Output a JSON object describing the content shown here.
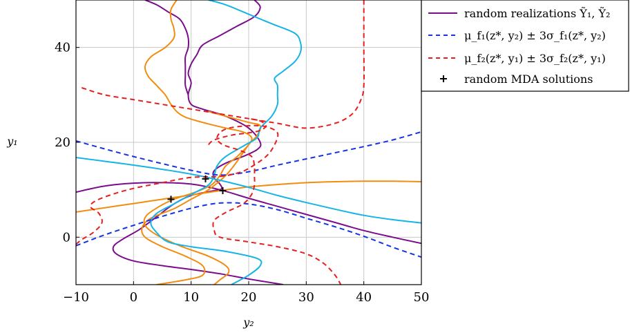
{
  "chart_data": {
    "type": "line",
    "xlabel": "y₂",
    "ylabel": "y₁",
    "xlim": [
      -10,
      50
    ],
    "ylim": [
      -10,
      50
    ],
    "xticks": [
      "−10",
      "0",
      "10",
      "20",
      "30",
      "40",
      "50"
    ],
    "yticks": [
      "0",
      "20",
      "40"
    ],
    "ytick_values": [
      0,
      20,
      40
    ],
    "xtick_values": [
      -10,
      0,
      10,
      20,
      30,
      40,
      50
    ],
    "grid": true,
    "legend_placement": "top-right",
    "colors": {
      "purple": "#7b0c8c",
      "orange": "#f28c0f",
      "cyan": "#14b4e6",
      "blue": "#1432e6",
      "red": "#e61e1e"
    },
    "legend": [
      {
        "label": "random realizations Ỹ₁, Ỹ₂",
        "style": "solid",
        "color": "#7b0c8c"
      },
      {
        "label": "μ_f₁(z*, y₂) ± 3σ_f₁(z*, y₂)",
        "style": "dashed",
        "color": "#1432e6"
      },
      {
        "label": "μ_f₂(z*, y₁) ± 3σ_f₂(z*, y₁)",
        "style": "dashed",
        "color": "#e61e1e"
      },
      {
        "label": "random MDA solutions",
        "style": "plus",
        "color": "#000000"
      }
    ],
    "series": [
      {
        "color": "purple",
        "style": "solid",
        "points": [
          [
            -10,
            9.5
          ],
          [
            -5,
            10.8
          ],
          [
            0,
            11.4
          ],
          [
            5,
            11.5
          ],
          [
            10,
            11.2
          ],
          [
            15,
            10
          ],
          [
            20,
            8.2
          ],
          [
            25,
            6.5
          ],
          [
            30,
            4.8
          ],
          [
            35,
            3.1
          ],
          [
            40,
            1.4
          ],
          [
            45,
            0
          ],
          [
            50,
            -1.3
          ]
        ]
      },
      {
        "color": "purple",
        "style": "solid",
        "points": [
          [
            26,
            -10
          ],
          [
            20,
            -8.8
          ],
          [
            15,
            -7.7
          ],
          [
            10,
            -6.8
          ],
          [
            5,
            -6
          ],
          [
            0,
            -5
          ],
          [
            -3,
            -3.5
          ],
          [
            -3.5,
            -2
          ],
          [
            -2,
            -0.5
          ],
          [
            1,
            1.6
          ],
          [
            4,
            4.3
          ],
          [
            7,
            7
          ],
          [
            10,
            8.8
          ],
          [
            14,
            9.8
          ],
          [
            15.3,
            10.2
          ],
          [
            15,
            11.2
          ],
          [
            14,
            12.5
          ],
          [
            14,
            14
          ],
          [
            16,
            15.6
          ],
          [
            19,
            17
          ],
          [
            21.5,
            18.5
          ],
          [
            22,
            20
          ],
          [
            20,
            23
          ],
          [
            16,
            25.5
          ],
          [
            12,
            27
          ],
          [
            10,
            28
          ],
          [
            9.5,
            30
          ],
          [
            10,
            32.5
          ],
          [
            9.5,
            34.5
          ],
          [
            10,
            36.5
          ],
          [
            11,
            38.5
          ],
          [
            12,
            40.5
          ],
          [
            15,
            42.5
          ],
          [
            18,
            44.5
          ],
          [
            21,
            46.5
          ],
          [
            22,
            48.5
          ],
          [
            21,
            50
          ]
        ]
      },
      {
        "color": "purple",
        "style": "solid",
        "points": [
          [
            2,
            50
          ],
          [
            4,
            49
          ],
          [
            6,
            47.5
          ],
          [
            8,
            46
          ],
          [
            9,
            44
          ],
          [
            9.5,
            42
          ],
          [
            9.5,
            40
          ],
          [
            9,
            38
          ],
          [
            9,
            36
          ],
          [
            9,
            34
          ],
          [
            9,
            32
          ],
          [
            9.5,
            30
          ]
        ]
      },
      {
        "color": "orange",
        "style": "solid",
        "points": [
          [
            -10,
            5.3
          ],
          [
            -5,
            6.2
          ],
          [
            0,
            7.1
          ],
          [
            5,
            8
          ],
          [
            10,
            8.9
          ],
          [
            15,
            9.8
          ],
          [
            20,
            10.6
          ],
          [
            25,
            11.1
          ],
          [
            30,
            11.5
          ],
          [
            35,
            11.7
          ],
          [
            40,
            11.8
          ],
          [
            45,
            11.8
          ],
          [
            50,
            11.7
          ]
        ]
      },
      {
        "color": "orange",
        "style": "solid",
        "points": [
          [
            14,
            -10
          ],
          [
            15,
            -9
          ],
          [
            16.5,
            -7.5
          ],
          [
            16,
            -6
          ],
          [
            13,
            -4
          ],
          [
            8,
            -1.8
          ],
          [
            4,
            0.5
          ],
          [
            2,
            2.5
          ],
          [
            2.2,
            4.5
          ],
          [
            4.5,
            6.5
          ],
          [
            7,
            8
          ],
          [
            10.5,
            9.4
          ],
          [
            13.5,
            11
          ],
          [
            15,
            13
          ],
          [
            16,
            15
          ],
          [
            18,
            17
          ],
          [
            20,
            19.5
          ],
          [
            20.5,
            21
          ],
          [
            19,
            22.2
          ],
          [
            16,
            23
          ],
          [
            12,
            24.2
          ],
          [
            9,
            25.3
          ],
          [
            7.5,
            26.5
          ],
          [
            6.5,
            28
          ],
          [
            5.5,
            30
          ],
          [
            4,
            32
          ],
          [
            2.5,
            34
          ],
          [
            2,
            36
          ],
          [
            3,
            38
          ],
          [
            5.5,
            40
          ],
          [
            7,
            42
          ],
          [
            7,
            44
          ],
          [
            6.5,
            46
          ],
          [
            6.5,
            48
          ],
          [
            7.5,
            50
          ]
        ]
      },
      {
        "color": "orange",
        "style": "solid",
        "points": [
          [
            4,
            -10
          ],
          [
            9,
            -9
          ],
          [
            12,
            -8
          ],
          [
            12,
            -6
          ],
          [
            9,
            -4
          ],
          [
            5,
            -2
          ],
          [
            2,
            0
          ],
          [
            1.5,
            2
          ],
          [
            3,
            4
          ],
          [
            7,
            6
          ],
          [
            10,
            8
          ],
          [
            13,
            10
          ],
          [
            16,
            13
          ],
          [
            18,
            16
          ],
          [
            20,
            19.5
          ],
          [
            21.5,
            21.5
          ],
          [
            22,
            23.5
          ],
          [
            20,
            24.2
          ],
          [
            16,
            25.5
          ],
          [
            13,
            26.5
          ]
        ]
      },
      {
        "color": "cyan",
        "style": "solid",
        "points": [
          [
            -10,
            16.8
          ],
          [
            -5,
            16
          ],
          [
            0,
            15.2
          ],
          [
            5,
            14.3
          ],
          [
            10,
            13.3
          ],
          [
            15,
            12
          ],
          [
            20,
            10.5
          ],
          [
            25,
            8.8
          ],
          [
            30,
            7.3
          ],
          [
            35,
            5.9
          ],
          [
            40,
            4.6
          ],
          [
            45,
            3.7
          ],
          [
            50,
            3
          ]
        ]
      },
      {
        "color": "cyan",
        "style": "solid",
        "points": [
          [
            17,
            -10
          ],
          [
            20,
            -8
          ],
          [
            22,
            -6
          ],
          [
            21.5,
            -4.5
          ],
          [
            16,
            -3
          ],
          [
            10,
            -2
          ],
          [
            6,
            -1
          ],
          [
            4,
            1
          ],
          [
            3,
            3
          ],
          [
            4,
            5
          ],
          [
            7,
            7
          ],
          [
            10,
            9
          ],
          [
            13,
            11
          ],
          [
            14,
            13
          ],
          [
            14.5,
            15
          ],
          [
            16,
            17
          ],
          [
            19.5,
            19.5
          ],
          [
            21.5,
            21
          ],
          [
            22,
            23
          ],
          [
            24,
            25.5
          ],
          [
            25,
            28
          ],
          [
            25,
            30
          ],
          [
            25,
            32
          ],
          [
            24.5,
            33.5
          ],
          [
            26,
            35
          ],
          [
            28,
            37
          ],
          [
            29,
            39
          ],
          [
            29,
            41
          ],
          [
            28,
            43
          ],
          [
            24,
            45
          ],
          [
            20,
            47
          ],
          [
            16,
            49
          ],
          [
            13,
            50
          ]
        ]
      },
      {
        "color": "blue",
        "style": "dashed",
        "points": [
          [
            -10,
            20.3
          ],
          [
            -5,
            18.6
          ],
          [
            0,
            17
          ],
          [
            5,
            15.5
          ],
          [
            10,
            14.1
          ],
          [
            15,
            13.1
          ],
          [
            20,
            13.8
          ],
          [
            25,
            15.2
          ],
          [
            30,
            16.5
          ],
          [
            35,
            17.8
          ],
          [
            40,
            19.1
          ],
          [
            45,
            20.5
          ],
          [
            50,
            22.2
          ]
        ]
      },
      {
        "color": "blue",
        "style": "dashed",
        "points": [
          [
            -10,
            -1.8
          ],
          [
            -5,
            0.5
          ],
          [
            0,
            2.5
          ],
          [
            5,
            4.4
          ],
          [
            10,
            6.1
          ],
          [
            15,
            7.2
          ],
          [
            20,
            7
          ],
          [
            25,
            5.8
          ],
          [
            30,
            4
          ],
          [
            35,
            2.2
          ],
          [
            40,
            0.2
          ],
          [
            45,
            -2.1
          ],
          [
            50,
            -4.2
          ]
        ]
      },
      {
        "color": "red",
        "style": "dashed",
        "points": [
          [
            -9,
            31.5
          ],
          [
            -5,
            30
          ],
          [
            0,
            29
          ],
          [
            5,
            28
          ],
          [
            10,
            27
          ],
          [
            15,
            26
          ],
          [
            20,
            25
          ],
          [
            25,
            24
          ],
          [
            30,
            23
          ],
          [
            35,
            24
          ],
          [
            38,
            26
          ],
          [
            39.5,
            29
          ],
          [
            40,
            32
          ],
          [
            40,
            40
          ],
          [
            40,
            50
          ]
        ]
      },
      {
        "color": "red",
        "style": "dashed",
        "points": [
          [
            -10,
            -1.5
          ],
          [
            -9,
            -0.5
          ],
          [
            -7,
            1
          ],
          [
            -5.5,
            3
          ],
          [
            -6,
            5
          ],
          [
            -7.5,
            6.5
          ],
          [
            -6,
            8
          ],
          [
            -1,
            10
          ],
          [
            5,
            11.5
          ],
          [
            10,
            12.6
          ],
          [
            15,
            12.8
          ],
          [
            18,
            13.5
          ],
          [
            20,
            14.5
          ],
          [
            23,
            17
          ],
          [
            24.5,
            19.5
          ],
          [
            25,
            22
          ],
          [
            23,
            23.3
          ],
          [
            20,
            23.5
          ],
          [
            16,
            22.8
          ],
          [
            14.5,
            21
          ],
          [
            15.5,
            19.5
          ],
          [
            18.5,
            18.3
          ],
          [
            20.5,
            17
          ],
          [
            21,
            15
          ],
          [
            21,
            13
          ],
          [
            21,
            11
          ],
          [
            20.5,
            9
          ],
          [
            19,
            7
          ],
          [
            16,
            5.2
          ],
          [
            14,
            3.5
          ],
          [
            14,
            1.5
          ],
          [
            15,
            0
          ],
          [
            20,
            -1
          ],
          [
            25,
            -2
          ],
          [
            30,
            -3.5
          ],
          [
            33,
            -5.5
          ],
          [
            35,
            -8
          ],
          [
            36,
            -10
          ]
        ]
      },
      {
        "color": "red",
        "style": "dashed",
        "points": [
          [
            13,
            19.5
          ],
          [
            14,
            20.5
          ],
          [
            17,
            21.5
          ],
          [
            20,
            22
          ],
          [
            22,
            22.5
          ],
          [
            23,
            23.5
          ],
          [
            22,
            24.5
          ],
          [
            20,
            25
          ]
        ]
      }
    ],
    "mda_solutions": [
      [
        6.5,
        8
      ],
      [
        12.5,
        12.3
      ],
      [
        15.5,
        9.8
      ]
    ]
  }
}
